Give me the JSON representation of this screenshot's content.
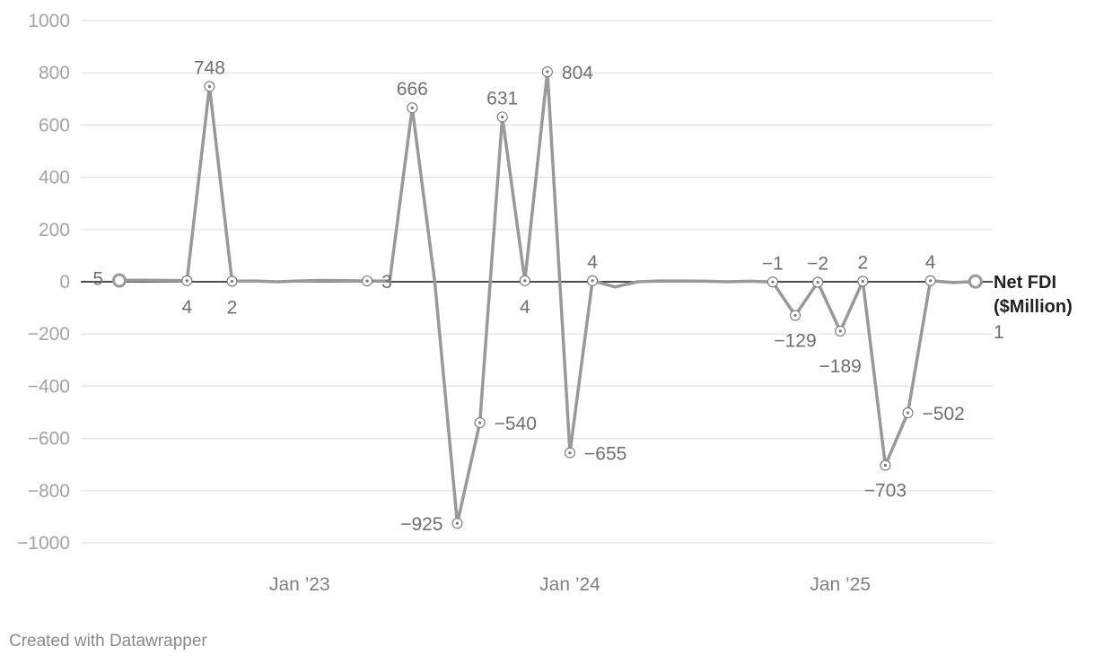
{
  "chart_data": {
    "type": "line",
    "title": "",
    "xlabel": "",
    "ylabel": "",
    "ylim": [
      -1000,
      1000
    ],
    "yticks": [
      1000,
      800,
      600,
      400,
      200,
      0,
      -200,
      -400,
      -600,
      -800,
      -1000
    ],
    "ytick_labels": [
      "1000",
      "800",
      "600",
      "400",
      "200",
      "0",
      "−200",
      "−400",
      "−600",
      "−800",
      "−1000"
    ],
    "x_start": "2022-05",
    "xticks": [
      {
        "date": "2023-01",
        "label": "Jan ’23"
      },
      {
        "date": "2024-01",
        "label": "Jan ’24"
      },
      {
        "date": "2025-01",
        "label": "Jan ’25"
      }
    ],
    "grid": true,
    "series": [
      {
        "name": "Net FDI\n($Million)",
        "color": "#999999",
        "x": [
          "2022-05",
          "2022-06",
          "2022-07",
          "2022-08",
          "2022-09",
          "2022-10",
          "2022-11",
          "2022-12",
          "2023-01",
          "2023-02",
          "2023-03",
          "2023-04",
          "2023-05",
          "2023-06",
          "2023-07",
          "2023-08",
          "2023-09",
          "2023-10",
          "2023-11",
          "2023-12",
          "2024-01",
          "2024-02",
          "2024-03",
          "2024-04",
          "2024-05",
          "2024-06",
          "2024-07",
          "2024-08",
          "2024-09",
          "2024-10",
          "2024-11",
          "2024-12",
          "2025-01",
          "2025-02",
          "2025-03",
          "2025-04",
          "2025-05",
          "2025-06",
          "2025-07"
        ],
        "values": [
          5,
          6,
          5,
          4,
          748,
          2,
          3,
          0,
          3,
          5,
          4,
          3,
          3,
          666,
          0,
          -925,
          -540,
          631,
          4,
          804,
          -655,
          4,
          -20,
          0,
          3,
          3,
          2,
          0,
          2,
          -1,
          -129,
          -2,
          -189,
          2,
          -703,
          -502,
          4,
          -3,
          1
        ],
        "last_value_label": "1"
      }
    ],
    "data_labels": [
      {
        "x": "2022-05",
        "text": "5"
      },
      {
        "x": "2022-08",
        "text": "4"
      },
      {
        "x": "2022-09",
        "text": "748"
      },
      {
        "x": "2022-10",
        "text": "2"
      },
      {
        "x": "2023-04",
        "text": "3"
      },
      {
        "x": "2023-06",
        "text": "666"
      },
      {
        "x": "2023-08",
        "text": "−925"
      },
      {
        "x": "2023-09",
        "text": "−540"
      },
      {
        "x": "2023-10",
        "text": "631"
      },
      {
        "x": "2023-11",
        "text": "4"
      },
      {
        "x": "2023-12",
        "text": "804"
      },
      {
        "x": "2024-01",
        "text": "−655"
      },
      {
        "x": "2024-02",
        "text": "4"
      },
      {
        "x": "2024-10",
        "text": "−1"
      },
      {
        "x": "2024-11",
        "text": "−129"
      },
      {
        "x": "2024-12",
        "text": "−2"
      },
      {
        "x": "2025-01",
        "text": "−189"
      },
      {
        "x": "2025-02",
        "text": "2"
      },
      {
        "x": "2025-03",
        "text": "−703"
      },
      {
        "x": "2025-04",
        "text": "−502"
      },
      {
        "x": "2025-05",
        "text": "4"
      }
    ]
  },
  "footer": "Created with Datawrapper"
}
